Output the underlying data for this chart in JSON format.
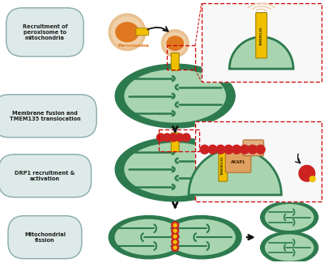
{
  "bg_color": "#ffffff",
  "mito_dark": "#2d7a4f",
  "mito_light": "#a8d5b0",
  "perox_outer": "#f0d0a8",
  "perox_inner": "#e07820",
  "tmem_color": "#f0c000",
  "tmem_edge": "#a08000",
  "drp1_color": "#cc2222",
  "akap_color": "#e0a060",
  "pka_color": "#e0b080",
  "red_dash": "#cc0000",
  "arrow_dark": "#111111",
  "label_bg": "#ddeae8",
  "label_edge": "#88aaaa",
  "label_text": "#222222",
  "orange_label": "#e07820",
  "white": "#ffffff",
  "labels": [
    "Recruitment of\nperoxisome to\nmitochondria",
    "Membrane fusion and\nTMEM135 translocation",
    "DRP1 recruitment &\nactivation",
    "Mitochondrial\nfission"
  ]
}
